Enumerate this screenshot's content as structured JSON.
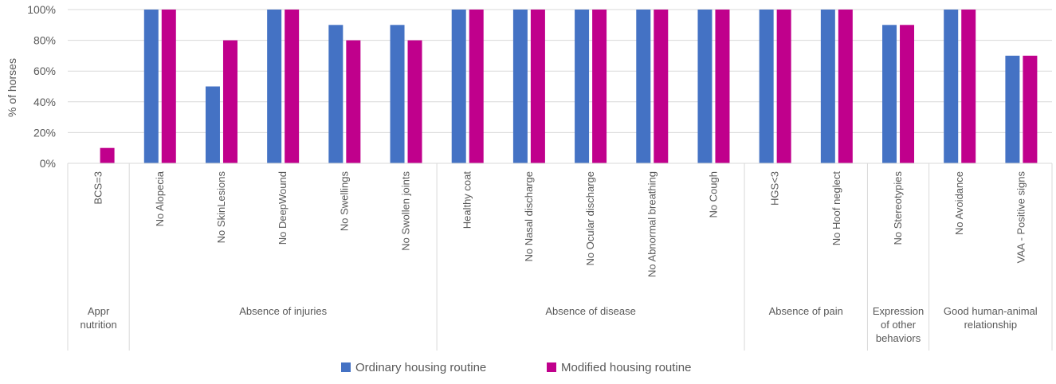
{
  "chart_data": {
    "type": "bar",
    "ylabel": "% of horses",
    "ylim": [
      0,
      100
    ],
    "yticks": [
      0,
      20,
      40,
      60,
      80,
      100
    ],
    "ytick_labels": [
      "0%",
      "20%",
      "40%",
      "60%",
      "80%",
      "100%"
    ],
    "categories": [
      "BCS=3",
      "No Alopecia",
      "No SkinLesions",
      "No DeepWound",
      "No Swellings",
      "No Swollen joints",
      "Healthy coat",
      "No Nasal discharge",
      "No Ocular discharge",
      "No Abnormal breathing",
      "No Cough",
      "HGS<3",
      "No Hoof neglect",
      "No Stereotypies",
      "No Avoidance",
      "VAA - Positive signs"
    ],
    "groups": [
      {
        "lines": [
          "Appr",
          "nutrition"
        ],
        "count": 1
      },
      {
        "lines": [
          "Absence of injuries"
        ],
        "count": 5
      },
      {
        "lines": [
          "Absence of disease"
        ],
        "count": 5
      },
      {
        "lines": [
          "Absence of pain"
        ],
        "count": 2
      },
      {
        "lines": [
          "Expression",
          "of other",
          "behaviors"
        ],
        "count": 1
      },
      {
        "lines": [
          "Good human-animal",
          "relationship"
        ],
        "count": 2
      }
    ],
    "series": [
      {
        "name": "Ordinary housing routine",
        "color": "#4472C4",
        "values": [
          0,
          100,
          50,
          100,
          90,
          90,
          100,
          100,
          100,
          100,
          100,
          100,
          100,
          90,
          100,
          70
        ]
      },
      {
        "name": "Modified housing routine",
        "color": "#C0008C",
        "values": [
          10,
          100,
          80,
          100,
          80,
          80,
          100,
          100,
          100,
          100,
          100,
          100,
          100,
          90,
          100,
          70
        ]
      }
    ],
    "legend_position": "bottom",
    "grid": true
  }
}
